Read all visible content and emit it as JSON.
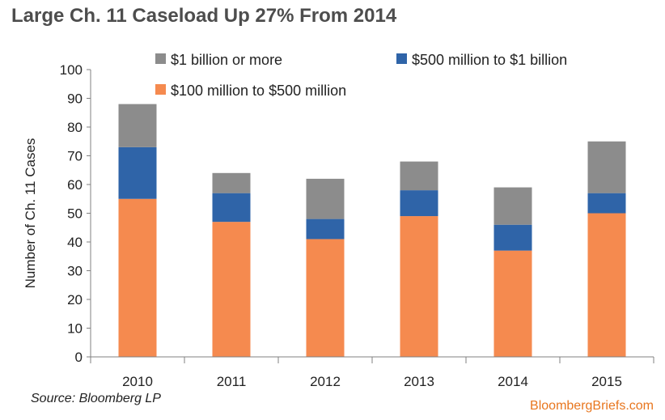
{
  "header": {
    "title": "Large Ch. 11 Caseload Up 27% From 2014"
  },
  "footer": {
    "source": "Source: Bloomberg LP",
    "brand": "BloombergBriefs.com"
  },
  "chart_data": {
    "type": "bar",
    "stacked": true,
    "categories": [
      "2010",
      "2011",
      "2012",
      "2013",
      "2014",
      "2015"
    ],
    "series": [
      {
        "name": "$100 million to $500 million",
        "color": "#f58a4f",
        "values": [
          55,
          47,
          41,
          49,
          37,
          50
        ]
      },
      {
        "name": "$500 million to $1 billion",
        "color": "#2f64a8",
        "values": [
          18,
          10,
          7,
          9,
          9,
          7
        ]
      },
      {
        "name": "$1 billion or more",
        "color": "#8c8c8c",
        "values": [
          15,
          7,
          14,
          10,
          13,
          18
        ]
      }
    ],
    "ylabel": "Number of Ch. 11 Cases",
    "xlabel": "",
    "ylim": [
      0,
      100
    ],
    "yticks": [
      0,
      10,
      20,
      30,
      40,
      50,
      60,
      70,
      80,
      90,
      100
    ],
    "grid": false,
    "legend": "top"
  }
}
